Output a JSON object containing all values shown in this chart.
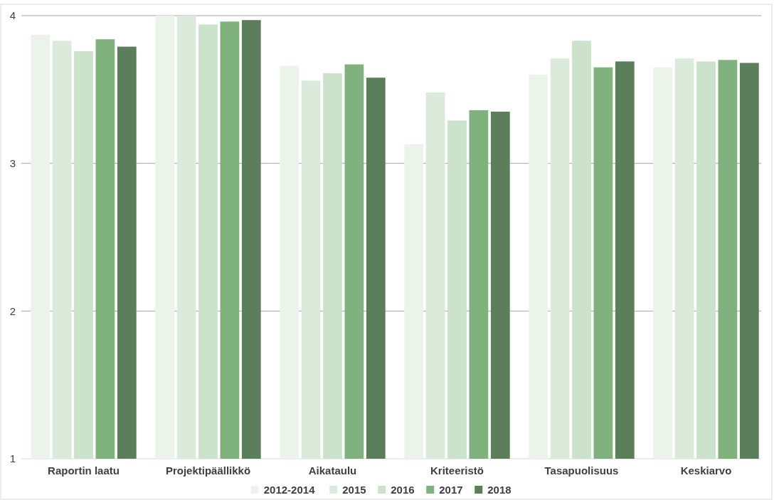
{
  "chart_data": {
    "type": "bar",
    "categories": [
      "Raportin laatu",
      "Projektipäällikkö",
      "Aikataulu",
      "Kriteeristö",
      "Tasapuolisuus",
      "Keskiarvo"
    ],
    "series": [
      {
        "name": "2012-2014",
        "color": "#ebf3eb",
        "values": [
          3.87,
          4.0,
          3.66,
          3.13,
          3.6,
          3.65
        ]
      },
      {
        "name": "2015",
        "color": "#dceadc",
        "values": [
          3.83,
          4.0,
          3.56,
          3.48,
          3.71,
          3.71
        ]
      },
      {
        "name": "2016",
        "color": "#cbe2cb",
        "values": [
          3.76,
          3.94,
          3.61,
          3.29,
          3.83,
          3.69
        ]
      },
      {
        "name": "2017",
        "color": "#7fb27d",
        "values": [
          3.84,
          3.96,
          3.67,
          3.36,
          3.65,
          3.7
        ]
      },
      {
        "name": "2018",
        "color": "#5a7f5a",
        "values": [
          3.79,
          3.97,
          3.58,
          3.35,
          3.69,
          3.68
        ]
      }
    ],
    "ylim": [
      1,
      4
    ],
    "yticks": [
      1,
      2,
      3,
      4
    ],
    "grid": "y",
    "legend": "bottom"
  }
}
